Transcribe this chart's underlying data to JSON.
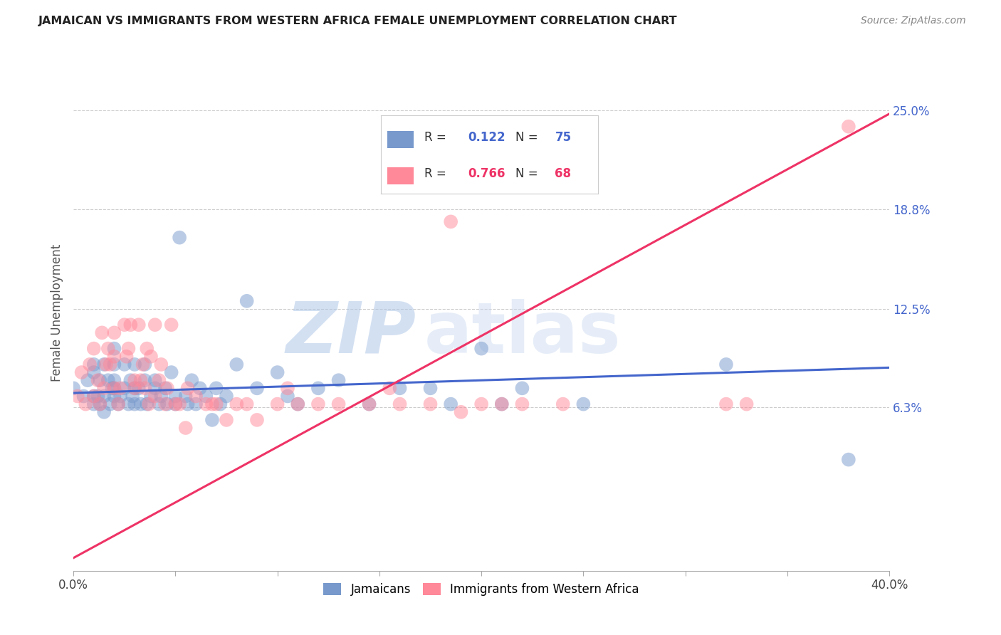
{
  "title": "JAMAICAN VS IMMIGRANTS FROM WESTERN AFRICA FEMALE UNEMPLOYMENT CORRELATION CHART",
  "source": "Source: ZipAtlas.com",
  "ylabel": "Female Unemployment",
  "xlim": [
    0.0,
    0.4
  ],
  "ylim": [
    -0.04,
    0.285
  ],
  "yticks": [
    0.063,
    0.125,
    0.188,
    0.25
  ],
  "ytick_labels": [
    "6.3%",
    "12.5%",
    "18.8%",
    "25.0%"
  ],
  "xticks": [
    0.0,
    0.05,
    0.1,
    0.15,
    0.2,
    0.25,
    0.3,
    0.35,
    0.4
  ],
  "xtick_labels": [
    "0.0%",
    "",
    "",
    "",
    "",
    "",
    "",
    "",
    "40.0%"
  ],
  "watermark_zip": "ZIP",
  "watermark_atlas": "atlas",
  "blue_color": "#7799CC",
  "pink_color": "#FF8899",
  "blue_line_color": "#4466CC",
  "pink_line_color": "#EE3366",
  "legend_label1": "Jamaicans",
  "legend_label2": "Immigrants from Western Africa",
  "blue_intercept": 0.072,
  "blue_slope": 0.04,
  "pink_intercept": -0.032,
  "pink_slope": 0.7,
  "jamaican_x": [
    0.0,
    0.005,
    0.007,
    0.01,
    0.01,
    0.01,
    0.01,
    0.012,
    0.013,
    0.013,
    0.015,
    0.015,
    0.015,
    0.017,
    0.018,
    0.019,
    0.02,
    0.02,
    0.02,
    0.02,
    0.02,
    0.022,
    0.023,
    0.025,
    0.025,
    0.027,
    0.028,
    0.029,
    0.03,
    0.03,
    0.03,
    0.032,
    0.033,
    0.035,
    0.035,
    0.036,
    0.038,
    0.04,
    0.04,
    0.042,
    0.043,
    0.045,
    0.046,
    0.048,
    0.05,
    0.05,
    0.052,
    0.055,
    0.056,
    0.058,
    0.06,
    0.062,
    0.065,
    0.068,
    0.07,
    0.072,
    0.075,
    0.08,
    0.085,
    0.09,
    0.1,
    0.105,
    0.11,
    0.12,
    0.13,
    0.145,
    0.16,
    0.175,
    0.185,
    0.2,
    0.21,
    0.22,
    0.25,
    0.32,
    0.38
  ],
  "jamaican_y": [
    0.075,
    0.07,
    0.08,
    0.065,
    0.085,
    0.07,
    0.09,
    0.07,
    0.08,
    0.065,
    0.09,
    0.06,
    0.07,
    0.08,
    0.065,
    0.075,
    0.09,
    0.1,
    0.075,
    0.08,
    0.07,
    0.065,
    0.07,
    0.075,
    0.09,
    0.065,
    0.08,
    0.07,
    0.09,
    0.065,
    0.075,
    0.075,
    0.065,
    0.08,
    0.09,
    0.065,
    0.07,
    0.075,
    0.08,
    0.065,
    0.07,
    0.075,
    0.065,
    0.085,
    0.07,
    0.065,
    0.17,
    0.07,
    0.065,
    0.08,
    0.065,
    0.075,
    0.07,
    0.055,
    0.075,
    0.065,
    0.07,
    0.09,
    0.13,
    0.075,
    0.085,
    0.07,
    0.065,
    0.075,
    0.08,
    0.065,
    0.075,
    0.075,
    0.065,
    0.1,
    0.065,
    0.075,
    0.065,
    0.09,
    0.03
  ],
  "western_africa_x": [
    0.002,
    0.004,
    0.006,
    0.008,
    0.01,
    0.01,
    0.012,
    0.013,
    0.014,
    0.015,
    0.016,
    0.017,
    0.018,
    0.02,
    0.02,
    0.02,
    0.022,
    0.023,
    0.025,
    0.026,
    0.027,
    0.028,
    0.03,
    0.03,
    0.032,
    0.033,
    0.034,
    0.035,
    0.036,
    0.037,
    0.038,
    0.04,
    0.04,
    0.042,
    0.043,
    0.045,
    0.046,
    0.048,
    0.05,
    0.052,
    0.055,
    0.056,
    0.06,
    0.065,
    0.068,
    0.07,
    0.075,
    0.08,
    0.085,
    0.09,
    0.1,
    0.105,
    0.11,
    0.12,
    0.13,
    0.145,
    0.155,
    0.16,
    0.175,
    0.185,
    0.19,
    0.2,
    0.21,
    0.22,
    0.24,
    0.32,
    0.33,
    0.38
  ],
  "western_africa_y": [
    0.07,
    0.085,
    0.065,
    0.09,
    0.07,
    0.1,
    0.08,
    0.065,
    0.11,
    0.075,
    0.09,
    0.1,
    0.09,
    0.075,
    0.11,
    0.095,
    0.065,
    0.075,
    0.115,
    0.095,
    0.1,
    0.115,
    0.075,
    0.08,
    0.115,
    0.08,
    0.09,
    0.075,
    0.1,
    0.065,
    0.095,
    0.07,
    0.115,
    0.08,
    0.09,
    0.065,
    0.075,
    0.115,
    0.065,
    0.065,
    0.05,
    0.075,
    0.07,
    0.065,
    0.065,
    0.065,
    0.055,
    0.065,
    0.065,
    0.055,
    0.065,
    0.075,
    0.065,
    0.065,
    0.065,
    0.065,
    0.075,
    0.065,
    0.065,
    0.18,
    0.06,
    0.065,
    0.065,
    0.065,
    0.065,
    0.065,
    0.065,
    0.24
  ]
}
